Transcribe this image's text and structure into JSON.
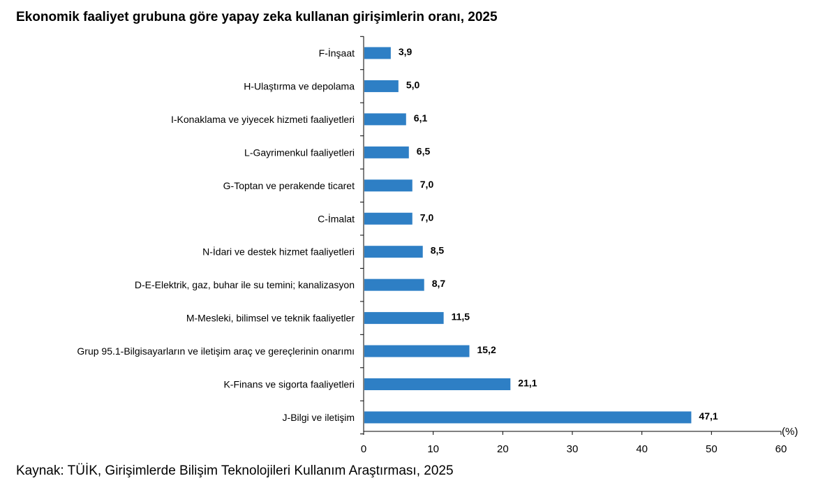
{
  "chart_data": {
    "type": "bar",
    "orientation": "horizontal",
    "title": "Ekonomik faaliyet grubuna göre yapay zeka kullanan girişimlerin oranı, 2025",
    "source": "Kaynak: TÜİK, Girişimlerde Bilişim Teknolojileri Kullanım Araştırması, 2025",
    "unit_label": "(%)",
    "categories": [
      "F-İnşaat",
      "H-Ulaştırma ve depolama",
      "I-Konaklama ve yiyecek hizmeti faaliyetleri",
      "L-Gayrimenkul faaliyetleri",
      "G-Toptan ve perakende ticaret",
      "C-İmalat",
      "N-İdari ve destek hizmet faaliyetleri",
      "D-E-Elektrik, gaz, buhar ile su temini; kanalizasyon",
      "M-Mesleki, bilimsel ve teknik faaliyetler",
      "Grup 95.1-Bilgisayarların ve iletişim araç ve gereçlerinin onarımı",
      "K-Finans ve sigorta faaliyetleri",
      "J-Bilgi ve iletişim"
    ],
    "values": [
      3.9,
      5.0,
      6.1,
      6.5,
      7.0,
      7.0,
      8.5,
      8.7,
      11.5,
      15.2,
      21.1,
      47.1
    ],
    "value_labels": [
      "3,9",
      "5,0",
      "6,1",
      "6,5",
      "7,0",
      "7,0",
      "8,5",
      "8,7",
      "11,5",
      "15,2",
      "21,1",
      "47,1"
    ],
    "xlim": [
      0,
      60
    ],
    "xticks": [
      0,
      10,
      20,
      30,
      40,
      50,
      60
    ],
    "grid": false,
    "bar_color": "#2e7fc5"
  }
}
